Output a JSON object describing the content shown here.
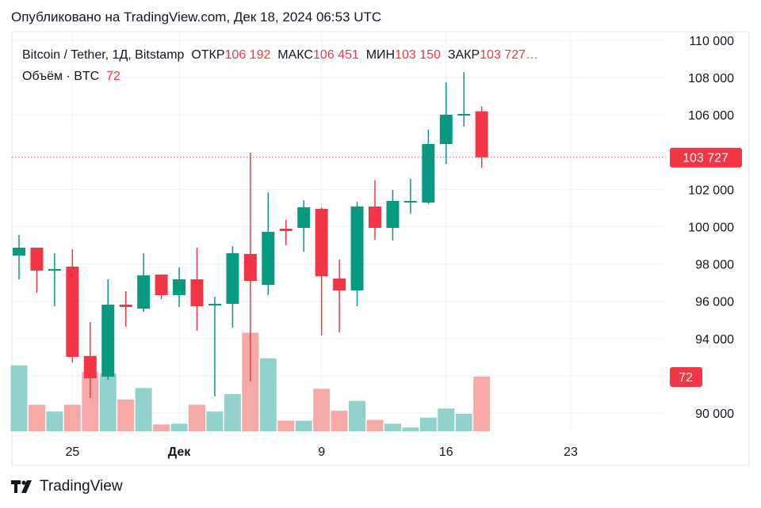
{
  "published": "Опубликовано на TradingView.com, Дек 18, 2024 06:53 UTC",
  "legend": {
    "symbol": "Bitcoin / Tether, 1Д, Bitstamp",
    "open_label": "ОТКР",
    "open": "106 192",
    "high_label": "МАКС",
    "high": "106 451",
    "low_label": "МИН",
    "low": "103 150",
    "close_label": "ЗАКР",
    "close": "103 727…",
    "volume_label": "Объём · BTC",
    "volume": "72"
  },
  "brand": "TradingView",
  "colors": {
    "up": "#089981",
    "down": "#f23645",
    "up_volume": "#92d2cc",
    "down_volume": "#f7a9a7"
  },
  "chart_data": {
    "type": "candlestick",
    "x": [
      "2024-11-22",
      "2024-11-23",
      "2024-11-24",
      "2024-11-25",
      "2024-11-26",
      "2024-11-27",
      "2024-11-28",
      "2024-11-29",
      "2024-11-30",
      "2024-12-01",
      "2024-12-02",
      "2024-12-03",
      "2024-12-04",
      "2024-12-05",
      "2024-12-06",
      "2024-12-07",
      "2024-12-08",
      "2024-12-09",
      "2024-12-10",
      "2024-12-11",
      "2024-12-12",
      "2024-12-13",
      "2024-12-14",
      "2024-12-15",
      "2024-12-16",
      "2024-12-17",
      "2024-12-18"
    ],
    "open": [
      98450,
      98875,
      97640,
      97856,
      93058,
      91954,
      95818,
      95606,
      97432,
      96328,
      97177,
      95818,
      95860,
      98536,
      96880,
      99895,
      99937,
      100956,
      97220,
      96583,
      101083,
      99937,
      101338,
      101296,
      104438,
      106009,
      106192
    ],
    "high": [
      99555,
      98875,
      98578,
      98790,
      94884,
      97177,
      96540,
      98578,
      97432,
      97813,
      98875,
      96243,
      98960,
      103971,
      101847,
      100361,
      101423,
      101041,
      98239,
      101338,
      102485,
      101975,
      102570,
      105202,
      107750,
      108302,
      106451
    ],
    "low": [
      97177,
      96455,
      95733,
      92718,
      90808,
      91784,
      94630,
      95436,
      96116,
      95690,
      94417,
      90893,
      94587,
      91700,
      96328,
      99003,
      98663,
      94163,
      94332,
      95733,
      99300,
      99258,
      100701,
      101211,
      103376,
      105372,
      103150
    ],
    "close": [
      98875,
      97644,
      97730,
      93016,
      91870,
      95818,
      95690,
      97389,
      96328,
      97177,
      95733,
      95860,
      98578,
      97092,
      99725,
      99767,
      101041,
      97347,
      96583,
      101083,
      99937,
      101381,
      101381,
      104438,
      106009,
      106051,
      103727
    ],
    "volume": [
      87,
      35,
      26,
      35,
      78,
      76,
      42,
      57,
      9,
      10,
      35,
      26,
      49,
      130,
      96,
      14,
      14,
      56,
      27,
      40,
      15,
      10,
      5,
      18,
      30,
      23,
      72
    ],
    "ylim": [
      88000,
      110500
    ],
    "y_ticks": [
      "110 000",
      "108 000",
      "106 000",
      "102 000",
      "100 000",
      "98 000",
      "96 000",
      "94 000",
      "90 000"
    ],
    "y_tick_values": [
      110000,
      108000,
      106000,
      102000,
      100000,
      98000,
      96000,
      94000,
      90000
    ],
    "x_ticks": [
      "25",
      "Дек",
      "9",
      "16",
      "23"
    ],
    "x_tick_dates": [
      "2024-11-25",
      "2024-12-01",
      "2024-12-09",
      "2024-12-16",
      "2024-12-23"
    ],
    "last_price_label": "103 727",
    "last_price": 103727,
    "last_volume_label": "72",
    "grid": true
  }
}
